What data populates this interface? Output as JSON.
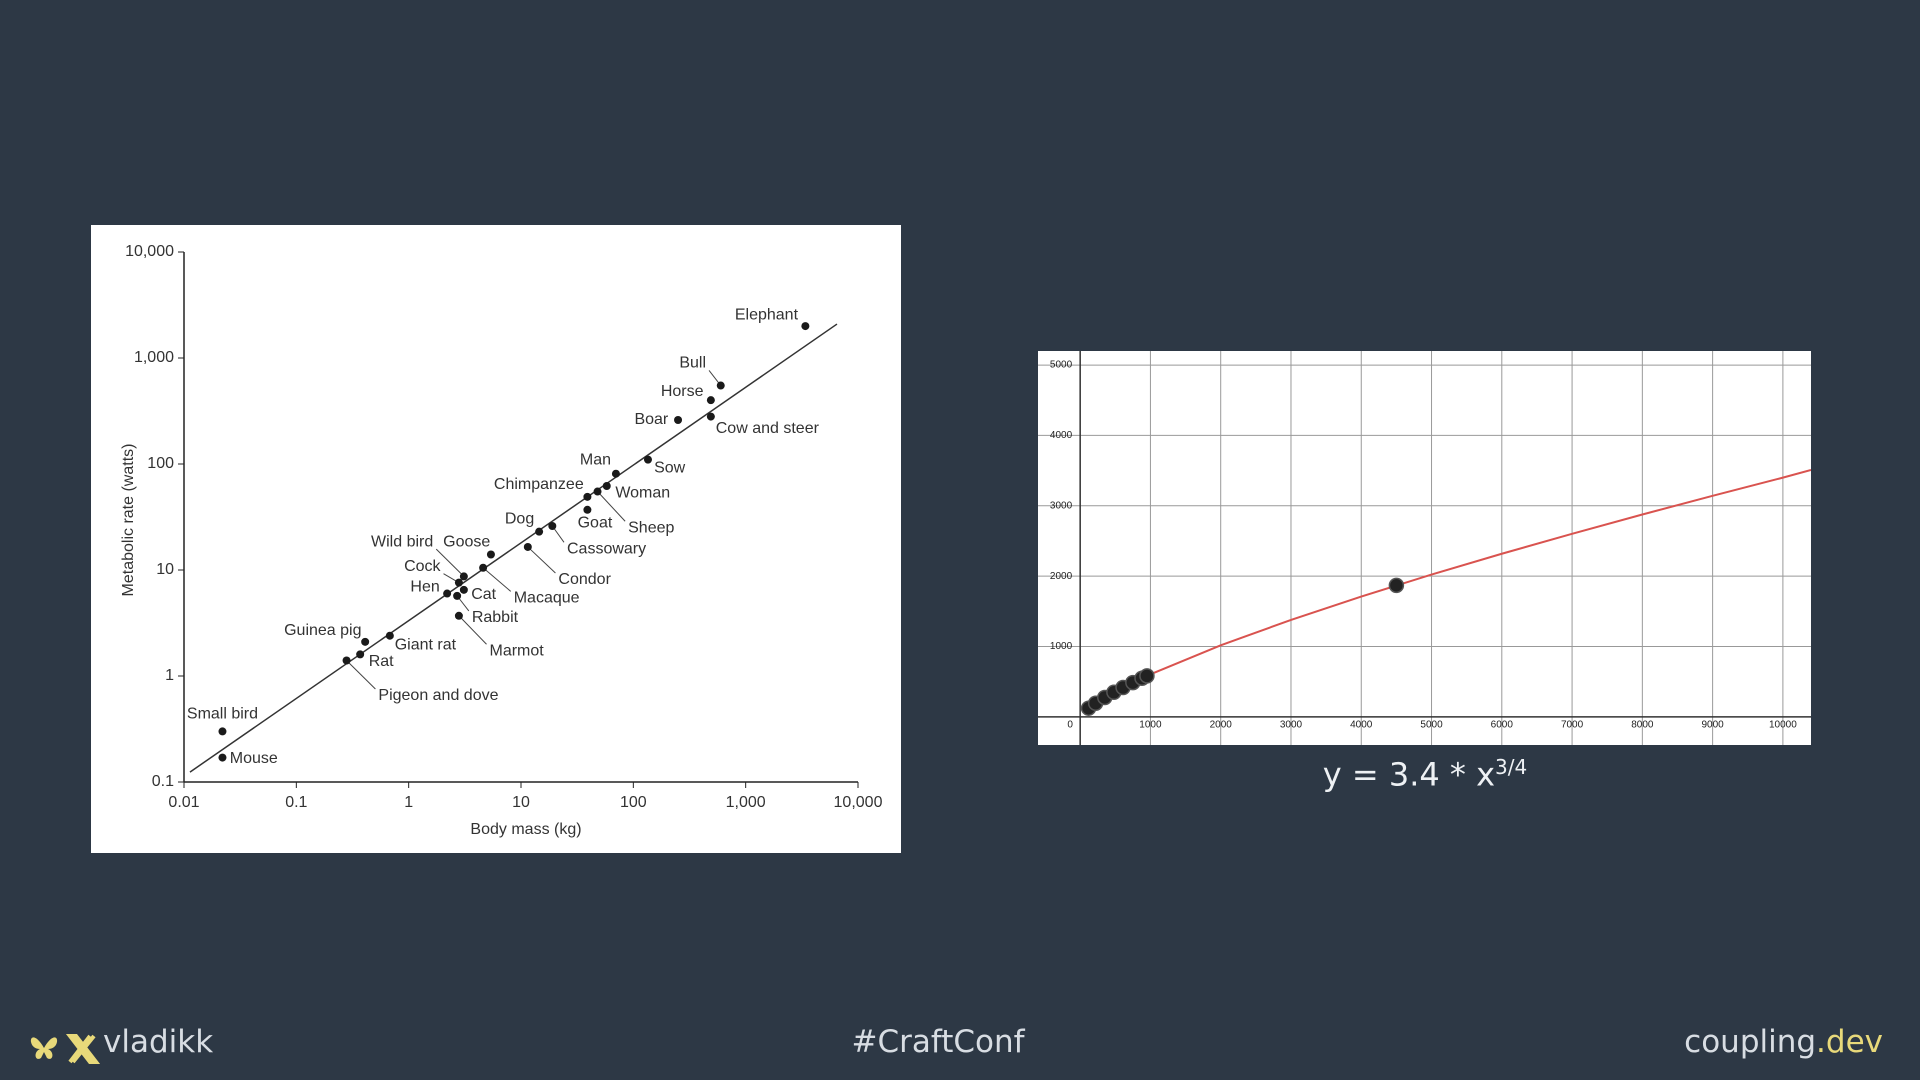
{
  "chart_data": [
    {
      "type": "scatter",
      "xscale": "log",
      "yscale": "log",
      "x_label": "Body mass (kg)",
      "y_label": "Metabolic rate (watts)",
      "xlim": [
        0.01,
        10000
      ],
      "ylim": [
        0.1,
        10000
      ],
      "xticks": [
        0.01,
        0.1,
        1,
        10,
        100,
        {
          "value": 1000,
          "label": "1,000"
        },
        {
          "value": 10000,
          "label": "10,000"
        }
      ],
      "yticks": [
        0.1,
        1,
        10,
        100,
        {
          "value": 1000,
          "label": "1,000"
        },
        {
          "value": 10000,
          "label": "10,000"
        }
      ],
      "color": "#1a1a1a",
      "points": [
        {
          "label": "Elephant",
          "x": 3400,
          "y": 2000
        },
        {
          "label": "Bull",
          "x": 600,
          "y": 550
        },
        {
          "label": "Horse",
          "x": 490,
          "y": 400
        },
        {
          "label": "Boar",
          "x": 250,
          "y": 260
        },
        {
          "label": "Cow and steer",
          "x": 490,
          "y": 280
        },
        {
          "label": "Sow",
          "x": 135,
          "y": 110
        },
        {
          "label": "Man",
          "x": 70,
          "y": 81
        },
        {
          "label": "Woman",
          "x": 58,
          "y": 62
        },
        {
          "label": "Chimpanzee",
          "x": 39,
          "y": 49
        },
        {
          "label": "Sheep",
          "x": 48,
          "y": 55
        },
        {
          "label": "Goat",
          "x": 39,
          "y": 37
        },
        {
          "label": "Dog",
          "x": 14.5,
          "y": 23
        },
        {
          "label": "Cassowary",
          "x": 19,
          "y": 26
        },
        {
          "label": "Condor",
          "x": 11.5,
          "y": 16.5
        },
        {
          "label": "Goose",
          "x": 5.4,
          "y": 14
        },
        {
          "label": "Macaque",
          "x": 4.6,
          "y": 10.5
        },
        {
          "label": "Wild bird",
          "x": 3.1,
          "y": 8.7
        },
        {
          "label": "Cock",
          "x": 2.8,
          "y": 7.6
        },
        {
          "label": "Cat",
          "x": 3.1,
          "y": 6.5
        },
        {
          "label": "Hen",
          "x": 2.2,
          "y": 6.0
        },
        {
          "label": "Rabbit",
          "x": 2.7,
          "y": 5.7
        },
        {
          "label": "Marmot",
          "x": 2.8,
          "y": 3.7
        },
        {
          "label": "Giant rat",
          "x": 0.68,
          "y": 2.4
        },
        {
          "label": "Guinea pig",
          "x": 0.41,
          "y": 2.1
        },
        {
          "label": "Rat",
          "x": 0.37,
          "y": 1.6
        },
        {
          "label": "Pigeon and dove",
          "x": 0.28,
          "y": 1.4
        },
        {
          "label": "Small bird",
          "x": 0.022,
          "y": 0.3
        },
        {
          "label": "Mouse",
          "x": 0.022,
          "y": 0.17
        }
      ],
      "fit": {
        "color": "#333333",
        "x": [
          0.0113,
          6500
        ],
        "y": [
          0.124,
          2090
        ]
      }
    },
    {
      "type": "line",
      "grid": true,
      "xlim": [
        -600,
        10400
      ],
      "ylim": [
        -400,
        5200
      ],
      "xticks": [
        0,
        1000,
        2000,
        3000,
        4000,
        5000,
        6000,
        7000,
        8000,
        9000,
        10000
      ],
      "yticks": [
        1000,
        2000,
        3000,
        4000,
        5000
      ],
      "caption": "y = 3.4 * x",
      "caption_sup": "3/4",
      "series": [
        {
          "style": "line",
          "color": "#d9534f",
          "x": [
            1000,
            2000,
            3000,
            4000,
            5000,
            6000,
            7000,
            8000,
            9000,
            10000,
            10400
          ],
          "values": [
            605,
            1017,
            1378,
            1710,
            2022,
            2318,
            2602,
            2876,
            3142,
            3400,
            3509
          ]
        },
        {
          "style": "points",
          "color": "#222222",
          "x": [
            120,
            220,
            350,
            480,
            610,
            750,
            880,
            950,
            4500
          ],
          "values": [
            123,
            194,
            275,
            349,
            417,
            487,
            549,
            582,
            1869
          ]
        }
      ]
    }
  ],
  "footer": {
    "handle": "vladikk",
    "hashtag": "#CraftConf",
    "site": "coupling",
    "site_suffix": ".dev"
  }
}
